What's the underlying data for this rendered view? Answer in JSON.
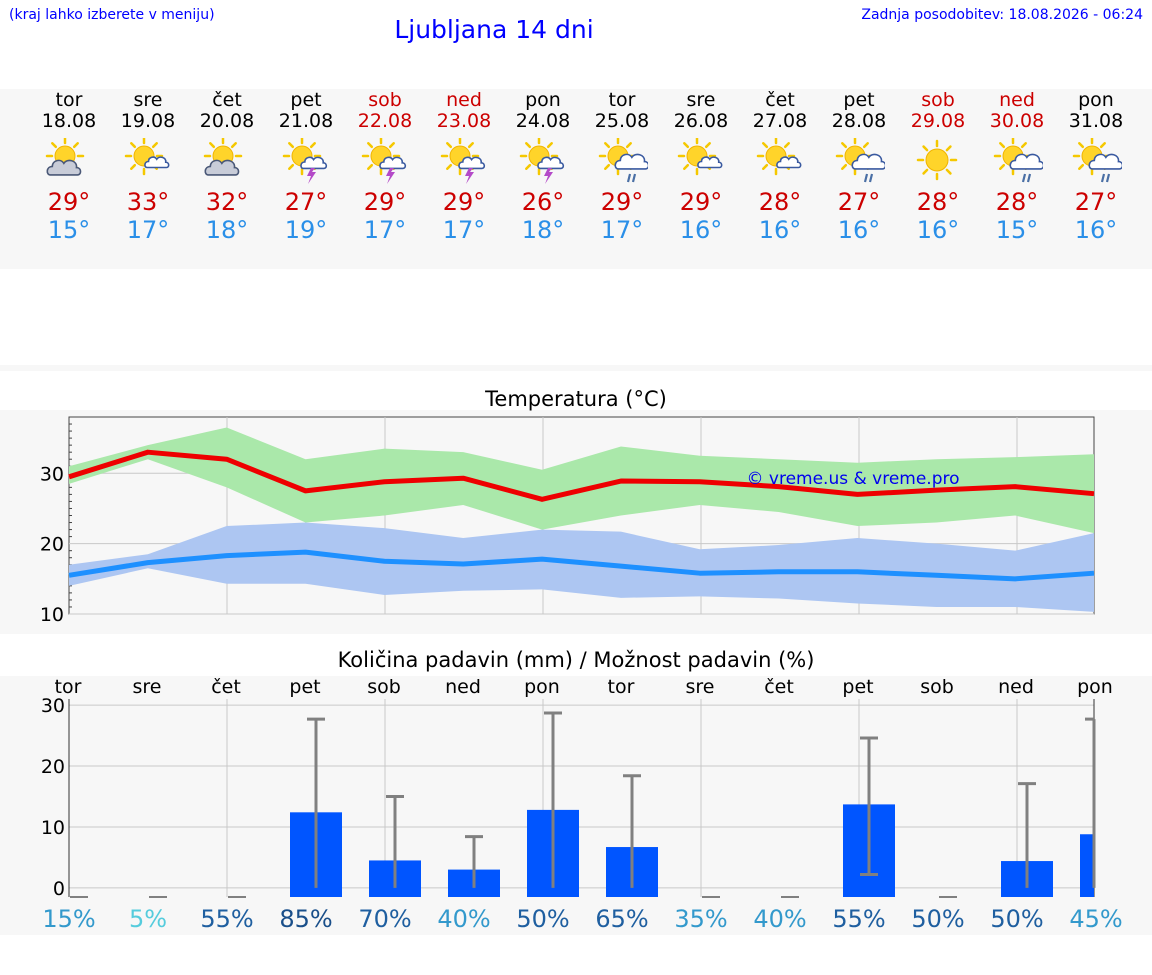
{
  "header": {
    "hint": "(kraj lahko izberete v meniju)",
    "title": "Ljubljana 14 dni",
    "updated": "Zadnja posodobitev: 18.08.2026 - 06:24"
  },
  "days": [
    {
      "name": "tor",
      "date": "18.08",
      "weekend": false,
      "icon": "sun-cloud-icon",
      "tmax": "29°",
      "tmin": "15°"
    },
    {
      "name": "sre",
      "date": "19.08",
      "weekend": false,
      "icon": "sun-small-cloud-icon",
      "tmax": "33°",
      "tmin": "17°"
    },
    {
      "name": "čet",
      "date": "20.08",
      "weekend": false,
      "icon": "sun-cloud-icon",
      "tmax": "32°",
      "tmin": "18°"
    },
    {
      "name": "pet",
      "date": "21.08",
      "weekend": false,
      "icon": "sun-thunderstorm-icon",
      "tmax": "27°",
      "tmin": "19°"
    },
    {
      "name": "sob",
      "date": "22.08",
      "weekend": true,
      "icon": "sun-thunderstorm-icon",
      "tmax": "29°",
      "tmin": "17°"
    },
    {
      "name": "ned",
      "date": "23.08",
      "weekend": true,
      "icon": "sun-thunderstorm-icon",
      "tmax": "29°",
      "tmin": "17°"
    },
    {
      "name": "pon",
      "date": "24.08",
      "weekend": false,
      "icon": "sun-thunderstorm-icon",
      "tmax": "26°",
      "tmin": "18°"
    },
    {
      "name": "tor",
      "date": "25.08",
      "weekend": false,
      "icon": "sun-rain-cloud-icon",
      "tmax": "29°",
      "tmin": "17°"
    },
    {
      "name": "sre",
      "date": "26.08",
      "weekend": false,
      "icon": "sun-small-cloud-icon",
      "tmax": "29°",
      "tmin": "16°"
    },
    {
      "name": "čet",
      "date": "27.08",
      "weekend": false,
      "icon": "sun-small-cloud-icon",
      "tmax": "28°",
      "tmin": "16°"
    },
    {
      "name": "pet",
      "date": "28.08",
      "weekend": false,
      "icon": "sun-rain-cloud-icon",
      "tmax": "27°",
      "tmin": "16°"
    },
    {
      "name": "sob",
      "date": "29.08",
      "weekend": true,
      "icon": "sun-icon",
      "tmax": "28°",
      "tmin": "16°"
    },
    {
      "name": "ned",
      "date": "30.08",
      "weekend": true,
      "icon": "sun-rain-cloud-icon",
      "tmax": "28°",
      "tmin": "15°"
    },
    {
      "name": "pon",
      "date": "31.08",
      "weekend": false,
      "icon": "sun-rain-cloud-icon",
      "tmax": "27°",
      "tmin": "16°"
    }
  ],
  "colors": {
    "max_line": "#ee0000",
    "max_band": "#aae8aa",
    "min_line": "#1e90ff",
    "min_band": "#adc6f2",
    "bar": "#0055ff",
    "whisker": "#808080",
    "grid": "#c8c8c8",
    "weekend": "#cc0000",
    "prob_colors": [
      "#3399cc",
      "#55ccdd",
      "#1f5fa0",
      "#1a4f8a",
      "#1f5fa0",
      "#3399cc",
      "#1f5fa0",
      "#1f5fa0",
      "#3399cc",
      "#3399cc",
      "#1f5fa0",
      "#1f5fa0",
      "#1f5fa0",
      "#3399cc"
    ]
  },
  "chart_data": [
    {
      "type": "line",
      "title": "Temperatura (°C)",
      "watermark": "© vreme.us & vreme.pro",
      "x": [
        "18.08",
        "19.08",
        "20.08",
        "21.08",
        "22.08",
        "23.08",
        "24.08",
        "25.08",
        "26.08",
        "27.08",
        "28.08",
        "29.08",
        "30.08",
        "31.08"
      ],
      "ylim": [
        10,
        38
      ],
      "yticks": [
        10,
        20,
        30
      ],
      "grid": true,
      "series": [
        {
          "role": "max",
          "values": [
            29.5,
            33,
            32,
            27.5,
            28.8,
            29.3,
            26.3,
            28.9,
            28.8,
            28.1,
            27,
            27.6,
            28.1,
            27.1
          ],
          "band_low": [
            28.5,
            32,
            28,
            23,
            24,
            25.5,
            22,
            24,
            25.5,
            24.5,
            22.5,
            23,
            24,
            21.5
          ],
          "band_high": [
            31,
            34,
            36.5,
            32,
            33.5,
            33,
            30.5,
            33.8,
            32.5,
            32,
            31.5,
            32,
            32.3,
            32.7
          ]
        },
        {
          "role": "min",
          "values": [
            15.5,
            17.3,
            18.3,
            18.8,
            17.5,
            17.1,
            17.8,
            16.8,
            15.8,
            16,
            16,
            15.5,
            15,
            15.8
          ],
          "band_low": [
            14,
            16.5,
            14.3,
            14.3,
            12.7,
            13.3,
            13.5,
            12.3,
            12.5,
            12.2,
            11.5,
            11,
            11,
            10.3
          ],
          "band_high": [
            17,
            18.5,
            22.5,
            23,
            22.2,
            20.8,
            22,
            21.7,
            19.2,
            19.8,
            20.8,
            20,
            19,
            21.5
          ]
        }
      ]
    },
    {
      "type": "bar",
      "title": "Količina padavin (mm) / Možnost padavin (%)",
      "categories": [
        "tor",
        "sre",
        "čet",
        "pet",
        "sob",
        "ned",
        "pon",
        "tor",
        "sre",
        "čet",
        "pet",
        "sob",
        "ned",
        "pon"
      ],
      "values": [
        0,
        0,
        0,
        12.4,
        4.5,
        3,
        12.8,
        6.7,
        0,
        0,
        13.7,
        0,
        4.4,
        8.8
      ],
      "error_low": [
        0,
        0,
        0,
        0,
        0,
        0,
        0,
        0,
        0,
        0,
        2.2,
        0,
        0,
        0
      ],
      "error_high": [
        0,
        0,
        0,
        27.7,
        15,
        8.4,
        28.7,
        18.4,
        0,
        0,
        24.6,
        0,
        17.1,
        27.7
      ],
      "ylim": [
        -1.5,
        31
      ],
      "yticks": [
        0,
        10,
        20,
        30
      ],
      "probability": [
        "15%",
        "5%",
        "55%",
        "85%",
        "70%",
        "40%",
        "50%",
        "65%",
        "35%",
        "40%",
        "55%",
        "50%",
        "50%",
        "45%"
      ]
    }
  ]
}
